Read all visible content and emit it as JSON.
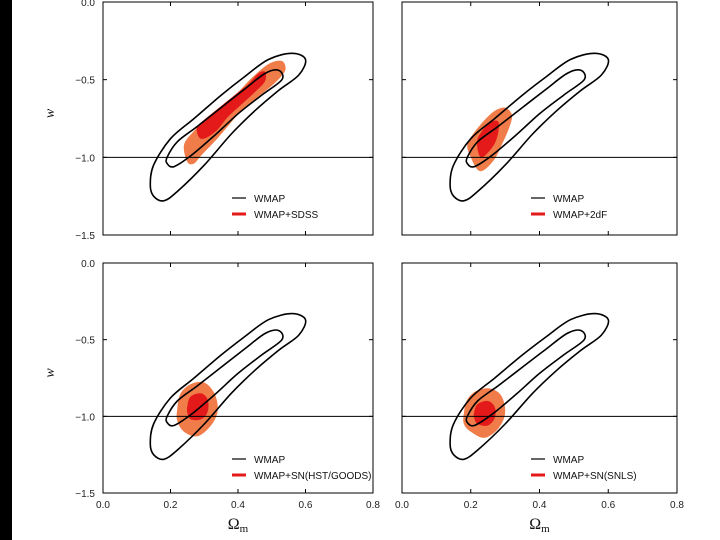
{
  "colors": {
    "wmap_contour": "#000000",
    "outer_fill": "#f07c4a",
    "inner_fill": "#e41a1a",
    "legend_red": "#e41a1a",
    "axis": "#000000"
  },
  "chart_data": [
    {
      "type": "contour",
      "panel": "top-left",
      "xlabel": "",
      "ylabel": "w",
      "xlim": [
        0.0,
        0.8
      ],
      "ylim": [
        -1.5,
        0.0
      ],
      "xticks": [],
      "yticks": [
        "0.0",
        "−0.5",
        "−1.0",
        "−1.5"
      ],
      "reference_line_w": -1.0,
      "legend": [
        {
          "label": "WMAP",
          "style": "line"
        },
        {
          "label": "WMAP+SDSS",
          "style": "red"
        }
      ],
      "wmap_contours": [
        {
          "level": "outer",
          "points": [
            [
              0.14,
              -1.18
            ],
            [
              0.15,
              -1.05
            ],
            [
              0.2,
              -0.88
            ],
            [
              0.27,
              -0.75
            ],
            [
              0.35,
              -0.6
            ],
            [
              0.42,
              -0.48
            ],
            [
              0.49,
              -0.37
            ],
            [
              0.56,
              -0.33
            ],
            [
              0.6,
              -0.37
            ],
            [
              0.58,
              -0.47
            ],
            [
              0.52,
              -0.57
            ],
            [
              0.45,
              -0.7
            ],
            [
              0.38,
              -0.85
            ],
            [
              0.3,
              -1.05
            ],
            [
              0.22,
              -1.22
            ],
            [
              0.18,
              -1.28
            ],
            [
              0.15,
              -1.25
            ]
          ]
        },
        {
          "level": "inner",
          "points": [
            [
              0.19,
              -1.0
            ],
            [
              0.22,
              -0.9
            ],
            [
              0.28,
              -0.8
            ],
            [
              0.35,
              -0.68
            ],
            [
              0.42,
              -0.56
            ],
            [
              0.48,
              -0.46
            ],
            [
              0.52,
              -0.44
            ],
            [
              0.53,
              -0.5
            ],
            [
              0.47,
              -0.6
            ],
            [
              0.4,
              -0.72
            ],
            [
              0.33,
              -0.86
            ],
            [
              0.26,
              -0.99
            ],
            [
              0.21,
              -1.06
            ],
            [
              0.19,
              -1.04
            ]
          ]
        }
      ],
      "filled_contours": [
        {
          "level": "outer",
          "points": [
            [
              0.25,
              -1.03
            ],
            [
              0.24,
              -0.92
            ],
            [
              0.27,
              -0.83
            ],
            [
              0.31,
              -0.75
            ],
            [
              0.35,
              -0.67
            ],
            [
              0.4,
              -0.58
            ],
            [
              0.44,
              -0.49
            ],
            [
              0.49,
              -0.4
            ],
            [
              0.53,
              -0.38
            ],
            [
              0.54,
              -0.44
            ],
            [
              0.51,
              -0.52
            ],
            [
              0.46,
              -0.61
            ],
            [
              0.41,
              -0.7
            ],
            [
              0.37,
              -0.8
            ],
            [
              0.33,
              -0.9
            ],
            [
              0.29,
              -0.99
            ],
            [
              0.27,
              -1.04
            ]
          ]
        },
        {
          "level": "inner",
          "points": [
            [
              0.28,
              -0.85
            ],
            [
              0.28,
              -0.8
            ],
            [
              0.31,
              -0.74
            ],
            [
              0.35,
              -0.67
            ],
            [
              0.39,
              -0.6
            ],
            [
              0.43,
              -0.53
            ],
            [
              0.46,
              -0.46
            ],
            [
              0.48,
              -0.45
            ],
            [
              0.48,
              -0.51
            ],
            [
              0.45,
              -0.58
            ],
            [
              0.41,
              -0.66
            ],
            [
              0.37,
              -0.74
            ],
            [
              0.34,
              -0.82
            ],
            [
              0.31,
              -0.87
            ],
            [
              0.29,
              -0.88
            ]
          ]
        }
      ]
    },
    {
      "type": "contour",
      "panel": "top-right",
      "xlabel": "",
      "ylabel": "",
      "xlim": [
        0.0,
        0.8
      ],
      "ylim": [
        -1.5,
        0.0
      ],
      "xticks": [],
      "yticks": [],
      "reference_line_w": -1.0,
      "legend": [
        {
          "label": "WMAP",
          "style": "line"
        },
        {
          "label": "WMAP+2dF",
          "style": "red"
        }
      ],
      "wmap_contours": [
        {
          "level": "outer",
          "points": [
            [
              0.14,
              -1.18
            ],
            [
              0.15,
              -1.05
            ],
            [
              0.2,
              -0.88
            ],
            [
              0.27,
              -0.75
            ],
            [
              0.35,
              -0.6
            ],
            [
              0.42,
              -0.48
            ],
            [
              0.49,
              -0.37
            ],
            [
              0.56,
              -0.33
            ],
            [
              0.6,
              -0.37
            ],
            [
              0.58,
              -0.47
            ],
            [
              0.52,
              -0.57
            ],
            [
              0.45,
              -0.7
            ],
            [
              0.38,
              -0.85
            ],
            [
              0.3,
              -1.05
            ],
            [
              0.22,
              -1.22
            ],
            [
              0.18,
              -1.28
            ],
            [
              0.15,
              -1.25
            ]
          ]
        },
        {
          "level": "inner",
          "points": [
            [
              0.19,
              -1.0
            ],
            [
              0.22,
              -0.9
            ],
            [
              0.28,
              -0.8
            ],
            [
              0.35,
              -0.68
            ],
            [
              0.42,
              -0.56
            ],
            [
              0.48,
              -0.46
            ],
            [
              0.52,
              -0.44
            ],
            [
              0.53,
              -0.5
            ],
            [
              0.47,
              -0.6
            ],
            [
              0.4,
              -0.72
            ],
            [
              0.33,
              -0.86
            ],
            [
              0.26,
              -0.99
            ],
            [
              0.21,
              -1.06
            ],
            [
              0.19,
              -1.04
            ]
          ]
        }
      ],
      "filled_contours": [
        {
          "level": "outer",
          "points": [
            [
              0.2,
              -1.0
            ],
            [
              0.19,
              -0.92
            ],
            [
              0.21,
              -0.84
            ],
            [
              0.24,
              -0.76
            ],
            [
              0.27,
              -0.7
            ],
            [
              0.3,
              -0.68
            ],
            [
              0.32,
              -0.73
            ],
            [
              0.31,
              -0.82
            ],
            [
              0.29,
              -0.92
            ],
            [
              0.27,
              -1.01
            ],
            [
              0.24,
              -1.08
            ],
            [
              0.22,
              -1.08
            ]
          ]
        },
        {
          "level": "inner",
          "points": [
            [
              0.22,
              -0.95
            ],
            [
              0.22,
              -0.88
            ],
            [
              0.24,
              -0.81
            ],
            [
              0.26,
              -0.77
            ],
            [
              0.28,
              -0.77
            ],
            [
              0.28,
              -0.84
            ],
            [
              0.27,
              -0.91
            ],
            [
              0.25,
              -0.97
            ],
            [
              0.23,
              -1.0
            ]
          ]
        }
      ]
    },
    {
      "type": "contour",
      "panel": "bottom-left",
      "xlabel": "Ω_m",
      "ylabel": "w",
      "xlim": [
        0.0,
        0.8
      ],
      "ylim": [
        -1.5,
        0.0
      ],
      "xticks": [
        "0.0",
        "0.2",
        "0.4",
        "0.6",
        "0.8"
      ],
      "yticks": [
        "0.0",
        "−0.5",
        "−1.0",
        "−1.5"
      ],
      "reference_line_w": -1.0,
      "legend": [
        {
          "label": "WMAP",
          "style": "line"
        },
        {
          "label": "WMAP+SN(HST/GOODS)",
          "style": "red"
        }
      ],
      "wmap_contours": [
        {
          "level": "outer",
          "points": [
            [
              0.14,
              -1.18
            ],
            [
              0.15,
              -1.05
            ],
            [
              0.2,
              -0.88
            ],
            [
              0.27,
              -0.75
            ],
            [
              0.35,
              -0.6
            ],
            [
              0.42,
              -0.48
            ],
            [
              0.49,
              -0.37
            ],
            [
              0.56,
              -0.33
            ],
            [
              0.6,
              -0.37
            ],
            [
              0.58,
              -0.47
            ],
            [
              0.52,
              -0.57
            ],
            [
              0.45,
              -0.7
            ],
            [
              0.38,
              -0.85
            ],
            [
              0.3,
              -1.05
            ],
            [
              0.22,
              -1.22
            ],
            [
              0.18,
              -1.28
            ],
            [
              0.15,
              -1.25
            ]
          ]
        },
        {
          "level": "inner",
          "points": [
            [
              0.19,
              -1.0
            ],
            [
              0.22,
              -0.9
            ],
            [
              0.28,
              -0.8
            ],
            [
              0.35,
              -0.68
            ],
            [
              0.42,
              -0.56
            ],
            [
              0.48,
              -0.46
            ],
            [
              0.52,
              -0.44
            ],
            [
              0.53,
              -0.5
            ],
            [
              0.47,
              -0.6
            ],
            [
              0.4,
              -0.72
            ],
            [
              0.33,
              -0.86
            ],
            [
              0.26,
              -0.99
            ],
            [
              0.21,
              -1.06
            ],
            [
              0.19,
              -1.04
            ]
          ]
        }
      ],
      "filled_contours": [
        {
          "level": "outer",
          "points": [
            [
              0.22,
              -0.95
            ],
            [
              0.23,
              -0.85
            ],
            [
              0.26,
              -0.79
            ],
            [
              0.3,
              -0.78
            ],
            [
              0.33,
              -0.85
            ],
            [
              0.34,
              -0.96
            ],
            [
              0.32,
              -1.06
            ],
            [
              0.28,
              -1.13
            ],
            [
              0.24,
              -1.1
            ],
            [
              0.22,
              -1.03
            ]
          ]
        },
        {
          "level": "inner",
          "points": [
            [
              0.25,
              -0.93
            ],
            [
              0.26,
              -0.87
            ],
            [
              0.29,
              -0.85
            ],
            [
              0.31,
              -0.89
            ],
            [
              0.31,
              -0.97
            ],
            [
              0.29,
              -1.02
            ],
            [
              0.26,
              -1.02
            ],
            [
              0.25,
              -0.98
            ]
          ]
        }
      ]
    },
    {
      "type": "contour",
      "panel": "bottom-right",
      "xlabel": "Ω_m",
      "ylabel": "",
      "xlim": [
        0.0,
        0.8
      ],
      "ylim": [
        -1.5,
        0.0
      ],
      "xticks": [
        "0.0",
        "0.2",
        "0.4",
        "0.6",
        "0.8"
      ],
      "yticks": [],
      "reference_line_w": -1.0,
      "legend": [
        {
          "label": "WMAP",
          "style": "line"
        },
        {
          "label": "WMAP+SN(SNLS)",
          "style": "red"
        }
      ],
      "wmap_contours": [
        {
          "level": "outer",
          "points": [
            [
              0.14,
              -1.18
            ],
            [
              0.15,
              -1.05
            ],
            [
              0.2,
              -0.88
            ],
            [
              0.27,
              -0.75
            ],
            [
              0.35,
              -0.6
            ],
            [
              0.42,
              -0.48
            ],
            [
              0.49,
              -0.37
            ],
            [
              0.56,
              -0.33
            ],
            [
              0.6,
              -0.37
            ],
            [
              0.58,
              -0.47
            ],
            [
              0.52,
              -0.57
            ],
            [
              0.45,
              -0.7
            ],
            [
              0.38,
              -0.85
            ],
            [
              0.3,
              -1.05
            ],
            [
              0.22,
              -1.22
            ],
            [
              0.18,
              -1.28
            ],
            [
              0.15,
              -1.25
            ]
          ]
        },
        {
          "level": "inner",
          "points": [
            [
              0.19,
              -1.0
            ],
            [
              0.22,
              -0.9
            ],
            [
              0.28,
              -0.8
            ],
            [
              0.35,
              -0.68
            ],
            [
              0.42,
              -0.56
            ],
            [
              0.48,
              -0.46
            ],
            [
              0.52,
              -0.44
            ],
            [
              0.53,
              -0.5
            ],
            [
              0.47,
              -0.6
            ],
            [
              0.4,
              -0.72
            ],
            [
              0.33,
              -0.86
            ],
            [
              0.26,
              -0.99
            ],
            [
              0.21,
              -1.06
            ],
            [
              0.19,
              -1.04
            ]
          ]
        }
      ],
      "filled_contours": [
        {
          "level": "outer",
          "points": [
            [
              0.18,
              -0.98
            ],
            [
              0.19,
              -0.89
            ],
            [
              0.22,
              -0.83
            ],
            [
              0.26,
              -0.82
            ],
            [
              0.29,
              -0.87
            ],
            [
              0.3,
              -0.98
            ],
            [
              0.28,
              -1.08
            ],
            [
              0.24,
              -1.14
            ],
            [
              0.2,
              -1.1
            ],
            [
              0.18,
              -1.05
            ]
          ]
        },
        {
          "level": "inner",
          "points": [
            [
              0.21,
              -0.97
            ],
            [
              0.22,
              -0.92
            ],
            [
              0.25,
              -0.9
            ],
            [
              0.27,
              -0.94
            ],
            [
              0.27,
              -1.01
            ],
            [
              0.25,
              -1.06
            ],
            [
              0.22,
              -1.05
            ],
            [
              0.21,
              -1.01
            ]
          ]
        }
      ]
    }
  ]
}
